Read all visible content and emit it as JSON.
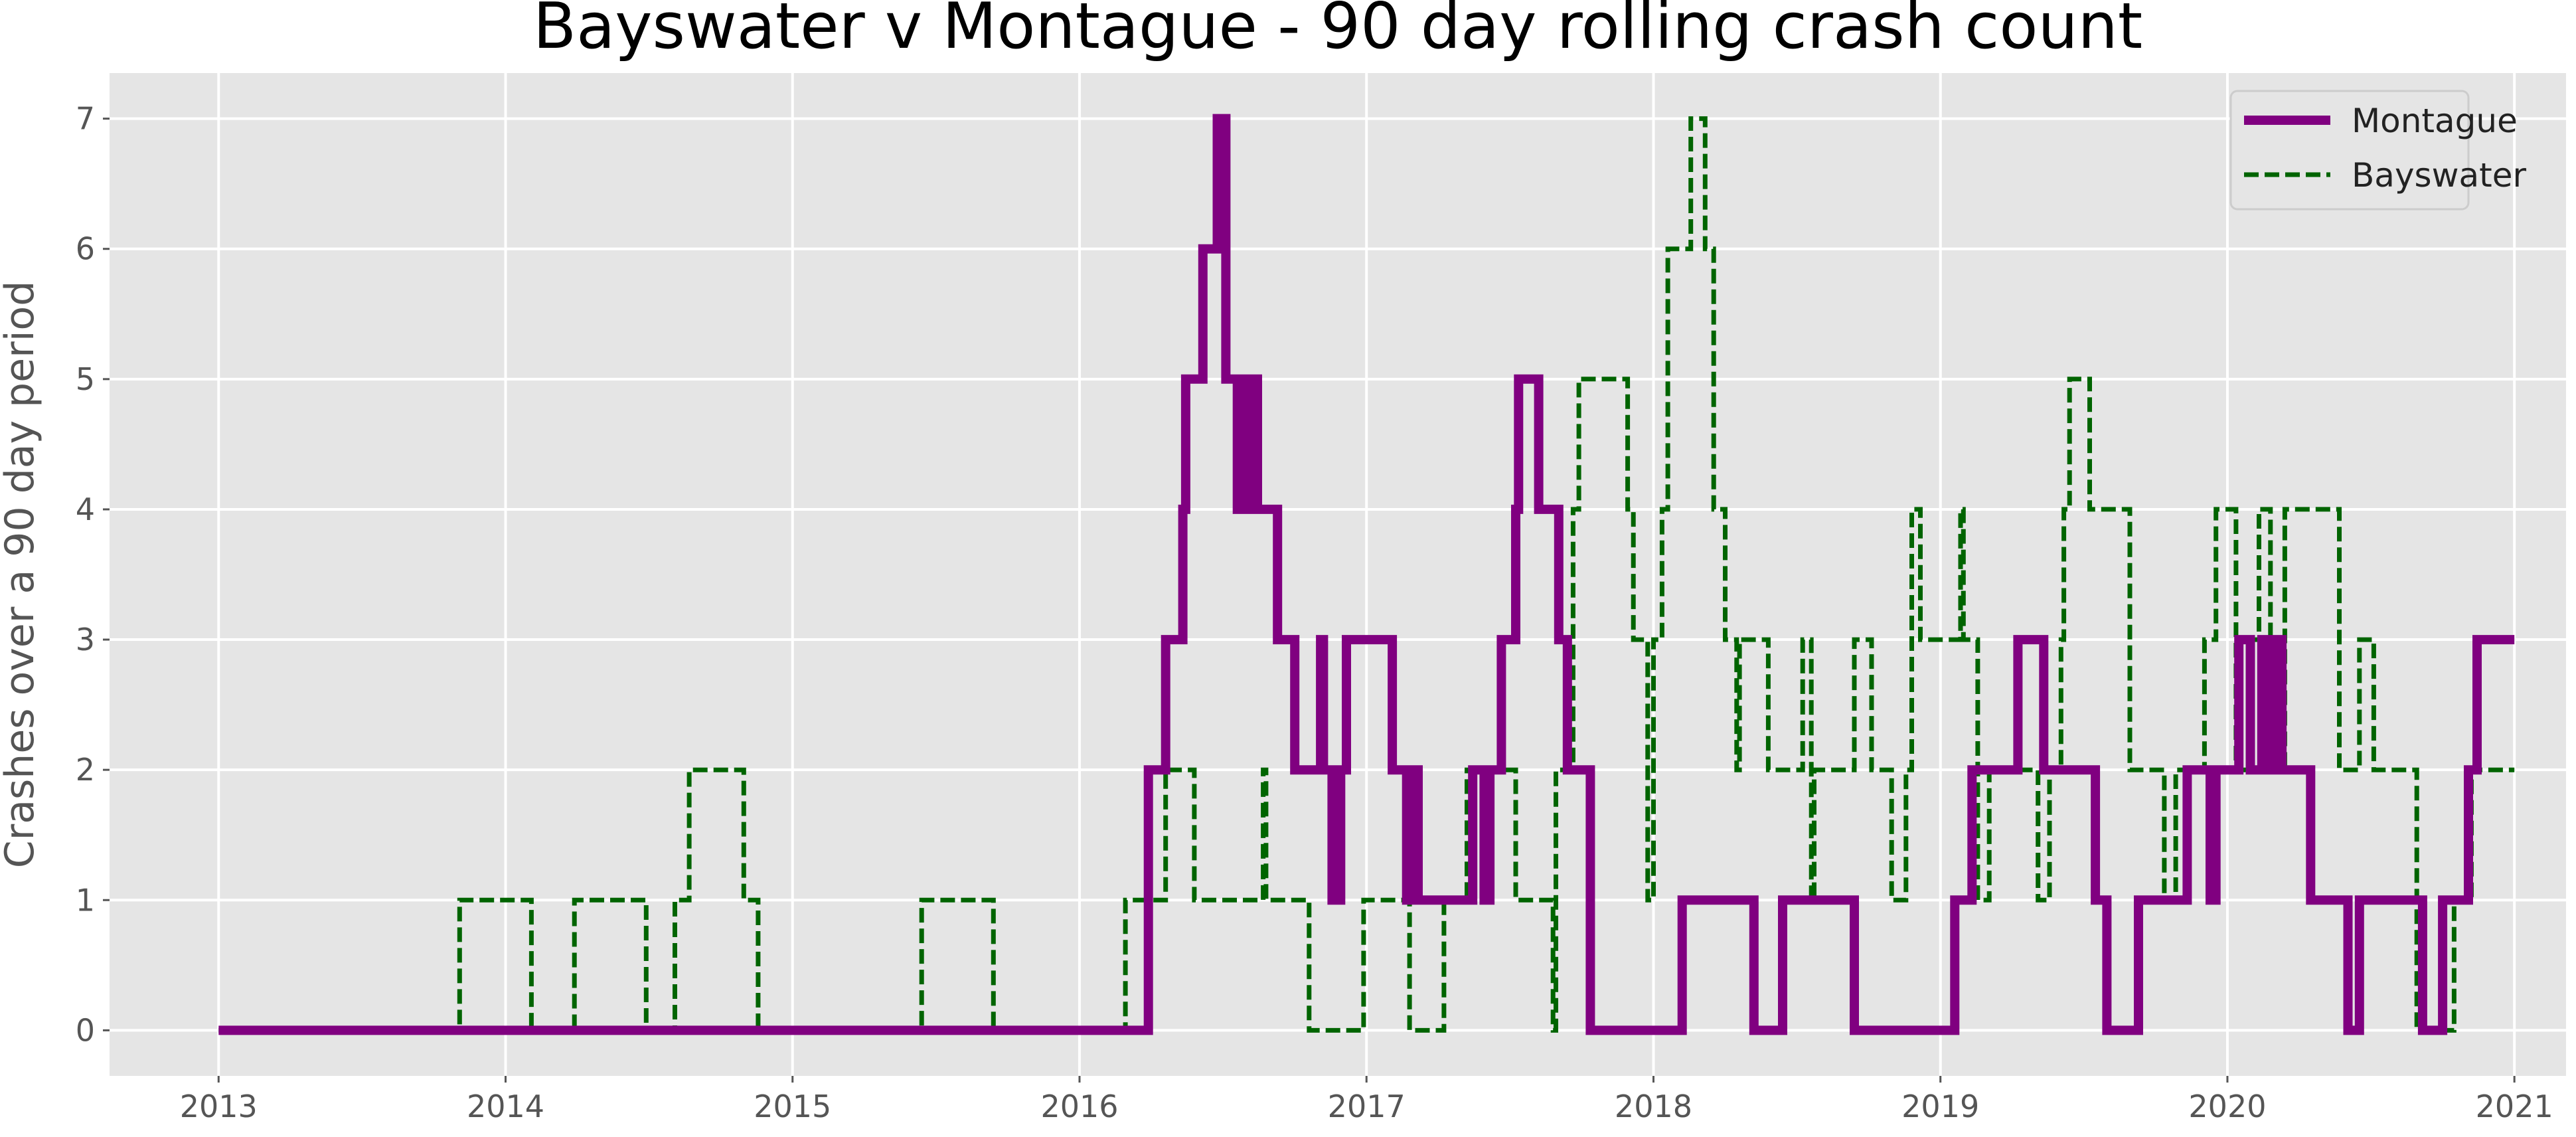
{
  "chart_data": {
    "type": "line",
    "title": "Bayswater v Montague - 90 day rolling crash count",
    "xlabel": "",
    "ylabel": "Crashes over a 90 day period",
    "xlim": [
      2012.62,
      2021.18
    ],
    "ylim": [
      -0.35,
      7.35
    ],
    "x_ticks": [
      "2013",
      "2014",
      "2015",
      "2016",
      "2017",
      "2018",
      "2019",
      "2020",
      "2021"
    ],
    "y_ticks": [
      "0",
      "1",
      "2",
      "3",
      "4",
      "5",
      "6",
      "7"
    ],
    "grid": true,
    "legend_position": "top-right",
    "colors": {
      "plot_bg": "#E5E5E5",
      "grid": "#FFFFFF",
      "tick": "#555555"
    },
    "series": [
      {
        "name": "Montague",
        "style": "solid",
        "color": "#800080",
        "points": [
          [
            2013.0,
            0
          ],
          [
            2016.24,
            0
          ],
          [
            2016.24,
            2
          ],
          [
            2016.3,
            2
          ],
          [
            2016.3,
            3
          ],
          [
            2016.36,
            3
          ],
          [
            2016.36,
            4
          ],
          [
            2016.37,
            4
          ],
          [
            2016.37,
            5
          ],
          [
            2016.43,
            5
          ],
          [
            2016.43,
            6
          ],
          [
            2016.48,
            6
          ],
          [
            2016.48,
            7
          ],
          [
            2016.51,
            7
          ],
          [
            2016.51,
            5
          ],
          [
            2016.55,
            5
          ],
          [
            2016.55,
            4
          ],
          [
            2016.57,
            4
          ],
          [
            2016.57,
            5
          ],
          [
            2016.58,
            5
          ],
          [
            2016.58,
            4
          ],
          [
            2016.59,
            4
          ],
          [
            2016.59,
            5
          ],
          [
            2016.62,
            5
          ],
          [
            2016.62,
            4
          ],
          [
            2016.69,
            4
          ],
          [
            2016.69,
            3
          ],
          [
            2016.75,
            3
          ],
          [
            2016.75,
            2
          ],
          [
            2016.84,
            2
          ],
          [
            2016.84,
            3
          ],
          [
            2016.85,
            3
          ],
          [
            2016.85,
            2
          ],
          [
            2016.88,
            2
          ],
          [
            2016.88,
            1
          ],
          [
            2016.91,
            1
          ],
          [
            2016.91,
            2
          ],
          [
            2016.93,
            2
          ],
          [
            2016.93,
            3
          ],
          [
            2017.09,
            3
          ],
          [
            2017.09,
            2
          ],
          [
            2017.14,
            2
          ],
          [
            2017.14,
            1
          ],
          [
            2017.16,
            1
          ],
          [
            2017.16,
            2
          ],
          [
            2017.18,
            2
          ],
          [
            2017.18,
            1
          ],
          [
            2017.37,
            1
          ],
          [
            2017.37,
            2
          ],
          [
            2017.41,
            2
          ],
          [
            2017.41,
            1
          ],
          [
            2017.43,
            1
          ],
          [
            2017.43,
            2
          ],
          [
            2017.47,
            2
          ],
          [
            2017.47,
            3
          ],
          [
            2017.52,
            3
          ],
          [
            2017.52,
            4
          ],
          [
            2017.53,
            4
          ],
          [
            2017.53,
            5
          ],
          [
            2017.6,
            5
          ],
          [
            2017.6,
            4
          ],
          [
            2017.67,
            4
          ],
          [
            2017.67,
            3
          ],
          [
            2017.7,
            3
          ],
          [
            2017.7,
            2
          ],
          [
            2017.78,
            2
          ],
          [
            2017.78,
            0
          ],
          [
            2018.1,
            0
          ],
          [
            2018.1,
            1
          ],
          [
            2018.35,
            1
          ],
          [
            2018.35,
            0
          ],
          [
            2018.45,
            0
          ],
          [
            2018.45,
            1
          ],
          [
            2018.7,
            1
          ],
          [
            2018.7,
            0
          ],
          [
            2019.05,
            0
          ],
          [
            2019.05,
            1
          ],
          [
            2019.11,
            1
          ],
          [
            2019.11,
            2
          ],
          [
            2019.27,
            2
          ],
          [
            2019.27,
            3
          ],
          [
            2019.36,
            3
          ],
          [
            2019.36,
            2
          ],
          [
            2019.54,
            2
          ],
          [
            2019.54,
            1
          ],
          [
            2019.58,
            1
          ],
          [
            2019.58,
            0
          ],
          [
            2019.69,
            0
          ],
          [
            2019.69,
            1
          ],
          [
            2019.86,
            1
          ],
          [
            2019.86,
            2
          ],
          [
            2019.94,
            2
          ],
          [
            2019.94,
            1
          ],
          [
            2019.96,
            1
          ],
          [
            2019.96,
            2
          ],
          [
            2020.04,
            2
          ],
          [
            2020.04,
            3
          ],
          [
            2020.08,
            3
          ],
          [
            2020.08,
            2
          ],
          [
            2020.12,
            2
          ],
          [
            2020.12,
            3
          ],
          [
            2020.14,
            3
          ],
          [
            2020.14,
            2
          ],
          [
            2020.16,
            2
          ],
          [
            2020.16,
            3
          ],
          [
            2020.19,
            3
          ],
          [
            2020.19,
            2
          ],
          [
            2020.29,
            2
          ],
          [
            2020.29,
            1
          ],
          [
            2020.42,
            1
          ],
          [
            2020.42,
            0
          ],
          [
            2020.46,
            0
          ],
          [
            2020.46,
            1
          ],
          [
            2020.68,
            1
          ],
          [
            2020.68,
            0
          ],
          [
            2020.75,
            0
          ],
          [
            2020.75,
            1
          ],
          [
            2020.84,
            1
          ],
          [
            2020.84,
            2
          ],
          [
            2020.87,
            2
          ],
          [
            2020.87,
            3
          ],
          [
            2021.0,
            3
          ]
        ]
      },
      {
        "name": "Bayswater",
        "style": "dashed",
        "color": "#006400",
        "points": [
          [
            2013.0,
            0
          ],
          [
            2013.84,
            0
          ],
          [
            2013.84,
            1
          ],
          [
            2014.09,
            1
          ],
          [
            2014.09,
            0
          ],
          [
            2014.24,
            0
          ],
          [
            2014.24,
            1
          ],
          [
            2014.49,
            1
          ],
          [
            2014.49,
            0
          ],
          [
            2014.59,
            0
          ],
          [
            2014.59,
            1
          ],
          [
            2014.64,
            1
          ],
          [
            2014.64,
            2
          ],
          [
            2014.83,
            2
          ],
          [
            2014.83,
            1
          ],
          [
            2014.88,
            1
          ],
          [
            2014.88,
            0
          ],
          [
            2015.45,
            0
          ],
          [
            2015.45,
            1
          ],
          [
            2015.7,
            1
          ],
          [
            2015.7,
            0
          ],
          [
            2016.16,
            0
          ],
          [
            2016.16,
            1
          ],
          [
            2016.3,
            1
          ],
          [
            2016.3,
            2
          ],
          [
            2016.4,
            2
          ],
          [
            2016.4,
            1
          ],
          [
            2016.64,
            1
          ],
          [
            2016.64,
            2
          ],
          [
            2016.65,
            2
          ],
          [
            2016.65,
            1
          ],
          [
            2016.8,
            1
          ],
          [
            2016.8,
            0
          ],
          [
            2016.99,
            0
          ],
          [
            2016.99,
            1
          ],
          [
            2017.15,
            1
          ],
          [
            2017.15,
            0
          ],
          [
            2017.27,
            0
          ],
          [
            2017.27,
            1
          ],
          [
            2017.35,
            1
          ],
          [
            2017.35,
            2
          ],
          [
            2017.52,
            2
          ],
          [
            2017.52,
            1
          ],
          [
            2017.65,
            1
          ],
          [
            2017.65,
            0
          ],
          [
            2017.66,
            0
          ],
          [
            2017.66,
            2
          ],
          [
            2017.72,
            2
          ],
          [
            2017.72,
            4
          ],
          [
            2017.74,
            4
          ],
          [
            2017.74,
            5
          ],
          [
            2017.91,
            5
          ],
          [
            2017.91,
            4
          ],
          [
            2017.93,
            4
          ],
          [
            2017.93,
            3
          ],
          [
            2017.98,
            3
          ],
          [
            2017.98,
            1
          ],
          [
            2018.0,
            1
          ],
          [
            2018.0,
            3
          ],
          [
            2018.03,
            3
          ],
          [
            2018.03,
            4
          ],
          [
            2018.05,
            4
          ],
          [
            2018.05,
            6
          ],
          [
            2018.13,
            6
          ],
          [
            2018.13,
            7
          ],
          [
            2018.18,
            7
          ],
          [
            2018.18,
            6
          ],
          [
            2018.21,
            6
          ],
          [
            2018.21,
            4
          ],
          [
            2018.25,
            4
          ],
          [
            2018.25,
            3
          ],
          [
            2018.29,
            3
          ],
          [
            2018.29,
            2
          ],
          [
            2018.3,
            2
          ],
          [
            2018.3,
            3
          ],
          [
            2018.4,
            3
          ],
          [
            2018.4,
            2
          ],
          [
            2018.52,
            2
          ],
          [
            2018.52,
            3
          ],
          [
            2018.55,
            3
          ],
          [
            2018.55,
            1
          ],
          [
            2018.56,
            1
          ],
          [
            2018.56,
            2
          ],
          [
            2018.7,
            2
          ],
          [
            2018.7,
            3
          ],
          [
            2018.76,
            3
          ],
          [
            2018.76,
            2
          ],
          [
            2018.83,
            2
          ],
          [
            2018.83,
            1
          ],
          [
            2018.88,
            1
          ],
          [
            2018.88,
            2
          ],
          [
            2018.9,
            2
          ],
          [
            2018.9,
            4
          ],
          [
            2018.93,
            4
          ],
          [
            2018.93,
            3
          ],
          [
            2019.07,
            3
          ],
          [
            2019.07,
            4
          ],
          [
            2019.08,
            4
          ],
          [
            2019.08,
            3
          ],
          [
            2019.13,
            3
          ],
          [
            2019.13,
            1
          ],
          [
            2019.17,
            1
          ],
          [
            2019.17,
            2
          ],
          [
            2019.34,
            2
          ],
          [
            2019.34,
            1
          ],
          [
            2019.38,
            1
          ],
          [
            2019.38,
            2
          ],
          [
            2019.42,
            2
          ],
          [
            2019.42,
            3
          ],
          [
            2019.43,
            3
          ],
          [
            2019.43,
            4
          ],
          [
            2019.45,
            4
          ],
          [
            2019.45,
            5
          ],
          [
            2019.52,
            5
          ],
          [
            2019.52,
            4
          ],
          [
            2019.66,
            4
          ],
          [
            2019.66,
            2
          ],
          [
            2019.78,
            2
          ],
          [
            2019.78,
            1
          ],
          [
            2019.82,
            1
          ],
          [
            2019.82,
            2
          ],
          [
            2019.92,
            2
          ],
          [
            2019.92,
            3
          ],
          [
            2019.96,
            3
          ],
          [
            2019.96,
            4
          ],
          [
            2020.03,
            4
          ],
          [
            2020.03,
            2
          ],
          [
            2020.08,
            2
          ],
          [
            2020.08,
            3
          ],
          [
            2020.11,
            3
          ],
          [
            2020.11,
            4
          ],
          [
            2020.15,
            4
          ],
          [
            2020.15,
            3
          ],
          [
            2020.17,
            3
          ],
          [
            2020.17,
            2
          ],
          [
            2020.2,
            2
          ],
          [
            2020.2,
            4
          ],
          [
            2020.39,
            4
          ],
          [
            2020.39,
            2
          ],
          [
            2020.46,
            2
          ],
          [
            2020.46,
            3
          ],
          [
            2020.51,
            3
          ],
          [
            2020.51,
            2
          ],
          [
            2020.66,
            2
          ],
          [
            2020.66,
            0
          ],
          [
            2020.79,
            0
          ],
          [
            2020.79,
            1
          ],
          [
            2020.85,
            1
          ],
          [
            2020.85,
            2
          ],
          [
            2021.0,
            2
          ]
        ]
      }
    ]
  }
}
